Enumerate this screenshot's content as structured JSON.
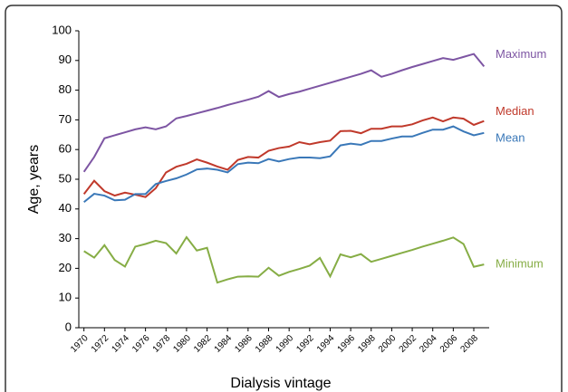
{
  "chart_data": {
    "type": "line",
    "x_label": "Dialysis vintage",
    "y_label": "Age, years",
    "x": [
      1970,
      1971,
      1972,
      1973,
      1974,
      1975,
      1976,
      1977,
      1978,
      1979,
      1980,
      1981,
      1982,
      1983,
      1984,
      1985,
      1986,
      1987,
      1988,
      1989,
      1990,
      1991,
      1992,
      1993,
      1994,
      1995,
      1996,
      1997,
      1998,
      1999,
      2000,
      2001,
      2002,
      2003,
      2004,
      2005,
      2006,
      2007,
      2008,
      2009
    ],
    "xlim": [
      1969.5,
      2009.5
    ],
    "xticks": [
      1970,
      1972,
      1974,
      1976,
      1978,
      1980,
      1982,
      1984,
      1986,
      1988,
      1990,
      1992,
      1994,
      1996,
      1998,
      2000,
      2002,
      2004,
      2006,
      2008
    ],
    "ylim": [
      0,
      100
    ],
    "yticks": [
      0,
      10,
      20,
      30,
      40,
      50,
      60,
      70,
      80,
      90,
      100
    ],
    "grid": false,
    "series": [
      {
        "name": "Maximum",
        "color": "#7d55a3",
        "values": [
          52.5,
          57.5,
          63.8,
          64.8,
          65.8,
          66.8,
          67.5,
          66.8,
          67.8,
          70.5,
          71.3,
          72.2,
          73.1,
          74,
          75,
          75.9,
          76.8,
          77.8,
          79.7,
          77.7,
          78.7,
          79.5,
          80.5,
          81.5,
          82.5,
          83.5,
          84.5,
          85.5,
          86.7,
          84.5,
          85.5,
          86.7,
          87.8,
          88.8,
          89.8,
          90.8,
          90.2,
          91.2,
          92.2,
          88
        ]
      },
      {
        "name": "Median",
        "color": "#c0392b",
        "values": [
          45,
          49.5,
          46,
          44.5,
          45.5,
          44.8,
          44,
          47,
          52.3,
          54.2,
          55.2,
          56.7,
          55.6,
          54.3,
          53.2,
          56.5,
          57.5,
          57.3,
          59.6,
          60.5,
          61,
          62.5,
          61.8,
          62.5,
          63,
          66.2,
          66.3,
          65.5,
          67,
          67,
          67.8,
          67.8,
          68.5,
          69.8,
          70.8,
          69.5,
          70.8,
          70.4,
          68.3,
          69.6
        ]
      },
      {
        "name": "Mean",
        "color": "#3a78b8",
        "values": [
          42.3,
          45.1,
          44.5,
          42.9,
          43.1,
          45,
          45,
          48.4,
          49.4,
          50.3,
          51.6,
          53.3,
          53.6,
          53.2,
          52.3,
          55.1,
          55.6,
          55.4,
          56.8,
          56,
          56.8,
          57.3,
          57.3,
          57.1,
          57.7,
          61.4,
          62,
          61.6,
          62.9,
          62.9,
          63.7,
          64.4,
          64.4,
          65.6,
          66.7,
          66.7,
          67.8,
          66.1,
          64.8,
          65.6
        ]
      },
      {
        "name": "Minimum",
        "color": "#86ad45",
        "values": [
          25.8,
          23.6,
          27.8,
          22.8,
          20.6,
          27.3,
          28.2,
          29.3,
          28.5,
          25,
          30.5,
          26,
          26.9,
          15.2,
          16.3,
          17.2,
          17.3,
          17.2,
          20.2,
          17.5,
          18.8,
          19.8,
          20.9,
          23.5,
          17.3,
          24.7,
          23.7,
          24.8,
          22.2,
          23.2,
          24.2,
          25.2,
          26.2,
          27.3,
          28.3,
          29.3,
          30.4,
          28.2,
          20.5,
          21.3
        ]
      }
    ]
  }
}
